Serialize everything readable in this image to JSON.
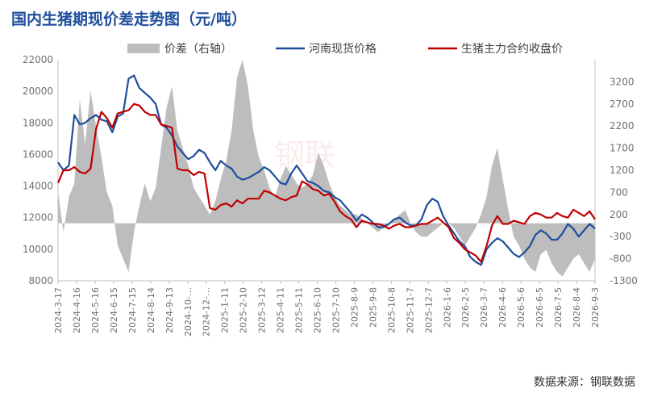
{
  "page": {
    "title": "国内生猪期现价差走势图（元/吨）",
    "source": "数据来源：钢联数据",
    "watermark": "钢联"
  },
  "colors": {
    "title": "#1f4e9c",
    "spread": "#bdbdbd",
    "spot": "#1f4e9c",
    "futures": "#c00000"
  },
  "chart_data": {
    "type": "line",
    "title": "国内生猪期现价差走势图（元/吨）",
    "legend_position": "top",
    "grid": false,
    "x_ticks": [
      "2024-3-17",
      "2024-4-16",
      "2024-5-16",
      "2024-6-15",
      "2024-7-15",
      "2024-8-14",
      "2024-9-13",
      "2024-10-…",
      "2024-12-…",
      "2025-1-11",
      "2025-2-10",
      "2025-3-12",
      "2025-4-11",
      "2025-5-11",
      "2025-6-10",
      "2025-7-10",
      "2025-8-9",
      "2025-9-8",
      "2025-10-8",
      "2025-11-7",
      "2025-12-7",
      "2026-1-6",
      "2026-2-5",
      "2026-3-7",
      "2026-4-6",
      "2026-5-6",
      "2026-6-5",
      "2026-7-5",
      "2026-8-4",
      "2026-9-3"
    ],
    "y_left": {
      "min": 8000,
      "max": 22000,
      "ticks": [
        8000,
        10000,
        12000,
        14000,
        16000,
        18000,
        20000,
        22000
      ]
    },
    "y_right": {
      "min": -1300,
      "max": 3700,
      "ticks": [
        -1300,
        -800,
        -300,
        200,
        700,
        1200,
        1700,
        2200,
        2700,
        3200
      ]
    },
    "series": [
      {
        "name": "价差（右轴）",
        "kind": "area",
        "axis": "right",
        "values": [
          700,
          -200,
          600,
          900,
          2800,
          1800,
          3000,
          2200,
          1500,
          700,
          400,
          -500,
          -800,
          -1100,
          -200,
          400,
          900,
          500,
          800,
          1700,
          2600,
          3100,
          2100,
          1700,
          1300,
          800,
          600,
          400,
          200,
          500,
          1000,
          1400,
          2100,
          3300,
          3700,
          3100,
          2100,
          1500,
          1200,
          800,
          600,
          1000,
          1300,
          1100,
          900,
          800,
          900,
          1100,
          1600,
          1300,
          900,
          600,
          400,
          300,
          200,
          200,
          100,
          0,
          -100,
          -200,
          -100,
          0,
          100,
          200,
          300,
          0,
          -200,
          -300,
          -300,
          -200,
          -100,
          0,
          0,
          -100,
          -300,
          -500,
          -300,
          -100,
          200,
          600,
          1300,
          1700,
          1000,
          300,
          -300,
          -500,
          -800,
          -1000,
          -1100,
          -700,
          -600,
          -900,
          -1100,
          -1200,
          -1000,
          -800,
          -700,
          -900,
          -1100,
          -800
        ]
      },
      {
        "name": "河南现货价格",
        "kind": "line",
        "axis": "left",
        "values": [
          15500,
          15000,
          15300,
          18500,
          17900,
          18000,
          18300,
          18500,
          18200,
          18100,
          17400,
          18400,
          18600,
          20800,
          21000,
          20200,
          19900,
          19600,
          19200,
          17900,
          17700,
          17200,
          16500,
          16100,
          15700,
          15900,
          16300,
          16100,
          15500,
          15000,
          15600,
          15300,
          15100,
          14600,
          14400,
          14500,
          14700,
          14900,
          15200,
          15000,
          14600,
          14200,
          14100,
          14800,
          15300,
          14800,
          14300,
          14200,
          14000,
          13700,
          13600,
          13300,
          13100,
          12700,
          12300,
          11800,
          12200,
          12000,
          11700,
          11400,
          11400,
          11600,
          11900,
          12000,
          11700,
          11500,
          11500,
          11900,
          12800,
          13200,
          13000,
          12100,
          11500,
          11000,
          10500,
          10200,
          9500,
          9200,
          9000,
          10000,
          10400,
          10700,
          10500,
          10100,
          9700,
          9500,
          9800,
          10200,
          10900,
          11200,
          11000,
          10600,
          10600,
          11000,
          11600,
          11300,
          10800,
          11200,
          11600,
          11300
        ]
      },
      {
        "name": "生猪主力合约收盘价",
        "kind": "line",
        "axis": "left",
        "values": [
          14200,
          15000,
          15000,
          15200,
          14900,
          14800,
          15100,
          17600,
          18700,
          18300,
          17700,
          18600,
          18700,
          18800,
          19200,
          19100,
          18700,
          18500,
          18500,
          17900,
          17800,
          17700,
          15100,
          15000,
          15000,
          14700,
          14900,
          14800,
          12600,
          12500,
          12800,
          12900,
          12700,
          13100,
          12900,
          13200,
          13200,
          13200,
          13700,
          13600,
          13400,
          13200,
          13100,
          13300,
          13400,
          14300,
          14100,
          13800,
          13700,
          13400,
          13500,
          13000,
          12400,
          12100,
          11900,
          11400,
          11800,
          11700,
          11600,
          11600,
          11500,
          11300,
          11500,
          11600,
          11400,
          11400,
          11500,
          11600,
          11600,
          11800,
          12000,
          11700,
          11400,
          10700,
          10400,
          10000,
          9800,
          9600,
          9200,
          10200,
          11500,
          12100,
          11600,
          11600,
          11800,
          11700,
          11600,
          12100,
          12300,
          12200,
          12000,
          12000,
          12300,
          12100,
          12000,
          12500,
          12300,
          12100,
          12400,
          11900
        ]
      }
    ]
  }
}
